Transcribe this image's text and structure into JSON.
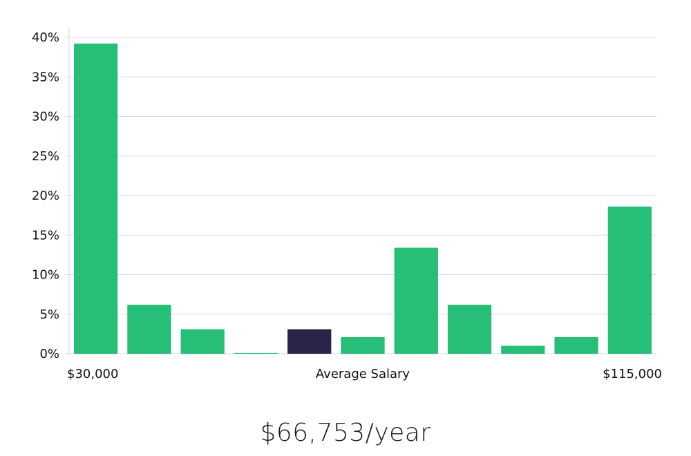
{
  "colors": {
    "bar": "#27be77",
    "highlight_bar": "#2a2548",
    "grid": "#d9d9d9",
    "text": "#111111"
  },
  "salary": {
    "text": "$66,753/year"
  },
  "chart_data": {
    "type": "bar",
    "title": "",
    "x_min_label": "$30,000",
    "x_max_label": "$115,000",
    "xlabel": "Average Salary",
    "ylabel": "",
    "ylim": [
      0,
      40
    ],
    "y_ticks": [
      "0%",
      "5%",
      "10%",
      "15%",
      "20%",
      "25%",
      "30%",
      "35%",
      "40%"
    ],
    "grid": true,
    "highlight_index": 4,
    "values": [
      39.2,
      6.2,
      3.1,
      0.1,
      3.1,
      2.1,
      13.4,
      6.2,
      1.0,
      2.1,
      18.6
    ]
  }
}
